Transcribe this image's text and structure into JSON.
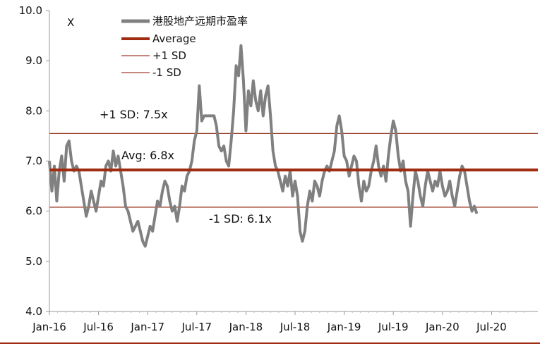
{
  "chart_data": {
    "type": "line",
    "ylabel_corner": "X",
    "ylim": [
      4.0,
      10.0
    ],
    "yticks": [
      "10.0",
      "9.0",
      "8.0",
      "7.0",
      "6.0",
      "5.0",
      "4.0"
    ],
    "xticks": [
      "Jan-16",
      "Jul-16",
      "Jan-17",
      "Jul-17",
      "Jan-18",
      "Jul-18",
      "Jan-19",
      "Jul-19",
      "Jan-20",
      "Jul-20"
    ],
    "x_range": [
      0,
      60
    ],
    "legend": [
      {
        "label": "港股地产远期市盈率",
        "color": "#808080"
      },
      {
        "label": "Average",
        "color": "#a02c12"
      },
      {
        "label": "+1 SD",
        "color": "#a0412a"
      },
      {
        "label": "-1 SD",
        "color": "#a0412a"
      }
    ],
    "colors": {
      "series": "#808080",
      "average": "#a02c12",
      "sd": "#a0412a",
      "axis": "#999999",
      "bottom_rule": "#a02c12"
    },
    "reference_lines": {
      "plus_sd": 7.55,
      "average": 6.82,
      "minus_sd": 6.08
    },
    "annotations": {
      "plus_sd": "+1 SD: 7.5x",
      "average": "Avg: 6.8x",
      "minus_sd": "-1 SD: 6.1x"
    },
    "series": [
      {
        "name": "港股地产远期市盈率",
        "points": [
          [
            0.0,
            7.0
          ],
          [
            0.3,
            6.4
          ],
          [
            0.6,
            6.9
          ],
          [
            0.9,
            6.2
          ],
          [
            1.2,
            6.8
          ],
          [
            1.5,
            7.1
          ],
          [
            1.8,
            6.6
          ],
          [
            2.1,
            7.3
          ],
          [
            2.4,
            7.4
          ],
          [
            2.7,
            7.0
          ],
          [
            3.0,
            6.8
          ],
          [
            3.3,
            6.9
          ],
          [
            3.6,
            6.8
          ],
          [
            3.9,
            6.5
          ],
          [
            4.2,
            6.2
          ],
          [
            4.5,
            5.9
          ],
          [
            4.8,
            6.1
          ],
          [
            5.1,
            6.4
          ],
          [
            5.4,
            6.2
          ],
          [
            5.7,
            6.0
          ],
          [
            6.0,
            6.3
          ],
          [
            6.3,
            6.6
          ],
          [
            6.6,
            6.5
          ],
          [
            6.9,
            6.9
          ],
          [
            7.2,
            7.0
          ],
          [
            7.5,
            6.8
          ],
          [
            7.8,
            7.2
          ],
          [
            8.1,
            6.9
          ],
          [
            8.4,
            7.1
          ],
          [
            8.7,
            6.8
          ],
          [
            9.0,
            6.5
          ],
          [
            9.3,
            6.1
          ],
          [
            9.6,
            6.0
          ],
          [
            9.9,
            5.8
          ],
          [
            10.2,
            5.6
          ],
          [
            10.5,
            5.7
          ],
          [
            10.8,
            5.8
          ],
          [
            11.1,
            5.6
          ],
          [
            11.4,
            5.4
          ],
          [
            11.7,
            5.3
          ],
          [
            12.0,
            5.5
          ],
          [
            12.3,
            5.7
          ],
          [
            12.6,
            5.6
          ],
          [
            12.9,
            5.9
          ],
          [
            13.2,
            6.2
          ],
          [
            13.5,
            6.1
          ],
          [
            13.8,
            6.4
          ],
          [
            14.1,
            6.6
          ],
          [
            14.4,
            6.5
          ],
          [
            14.7,
            6.2
          ],
          [
            15.0,
            6.0
          ],
          [
            15.3,
            6.1
          ],
          [
            15.6,
            5.8
          ],
          [
            15.9,
            6.1
          ],
          [
            16.2,
            6.5
          ],
          [
            16.5,
            6.4
          ],
          [
            16.8,
            6.7
          ],
          [
            17.1,
            6.8
          ],
          [
            17.4,
            7.0
          ],
          [
            17.7,
            7.4
          ],
          [
            18.0,
            7.6
          ],
          [
            18.3,
            8.5
          ],
          [
            18.6,
            7.8
          ],
          [
            18.9,
            7.9
          ],
          [
            19.2,
            7.9
          ],
          [
            19.5,
            7.9
          ],
          [
            19.8,
            7.9
          ],
          [
            20.1,
            7.9
          ],
          [
            20.4,
            7.7
          ],
          [
            20.7,
            7.3
          ],
          [
            21.0,
            7.2
          ],
          [
            21.3,
            7.3
          ],
          [
            21.6,
            7.0
          ],
          [
            21.9,
            6.9
          ],
          [
            22.2,
            7.4
          ],
          [
            22.5,
            8.0
          ],
          [
            22.8,
            8.9
          ],
          [
            23.1,
            8.7
          ],
          [
            23.4,
            9.3
          ],
          [
            23.7,
            8.6
          ],
          [
            24.0,
            7.6
          ],
          [
            24.3,
            8.4
          ],
          [
            24.6,
            8.1
          ],
          [
            24.9,
            8.6
          ],
          [
            25.2,
            8.2
          ],
          [
            25.5,
            8.0
          ],
          [
            25.8,
            8.4
          ],
          [
            26.1,
            7.9
          ],
          [
            26.4,
            8.3
          ],
          [
            26.7,
            8.5
          ],
          [
            27.0,
            7.9
          ],
          [
            27.3,
            7.2
          ],
          [
            27.6,
            6.9
          ],
          [
            27.9,
            6.8
          ],
          [
            28.2,
            6.6
          ],
          [
            28.5,
            6.4
          ],
          [
            28.8,
            6.7
          ],
          [
            29.1,
            6.5
          ],
          [
            29.4,
            6.8
          ],
          [
            29.7,
            6.3
          ],
          [
            30.0,
            6.6
          ],
          [
            30.3,
            6.3
          ],
          [
            30.6,
            5.6
          ],
          [
            30.9,
            5.4
          ],
          [
            31.2,
            5.6
          ],
          [
            31.5,
            6.1
          ],
          [
            31.8,
            6.4
          ],
          [
            32.1,
            6.2
          ],
          [
            32.4,
            6.6
          ],
          [
            32.7,
            6.5
          ],
          [
            33.0,
            6.3
          ],
          [
            33.3,
            6.6
          ],
          [
            33.6,
            6.8
          ],
          [
            33.9,
            6.9
          ],
          [
            34.2,
            6.8
          ],
          [
            34.5,
            7.0
          ],
          [
            34.8,
            7.2
          ],
          [
            35.1,
            7.7
          ],
          [
            35.4,
            7.9
          ],
          [
            35.7,
            7.6
          ],
          [
            36.0,
            7.1
          ],
          [
            36.3,
            7.0
          ],
          [
            36.6,
            6.7
          ],
          [
            36.9,
            6.9
          ],
          [
            37.2,
            7.1
          ],
          [
            37.5,
            7.0
          ],
          [
            37.8,
            6.5
          ],
          [
            38.1,
            6.2
          ],
          [
            38.4,
            6.6
          ],
          [
            38.7,
            6.4
          ],
          [
            39.0,
            6.5
          ],
          [
            39.3,
            6.8
          ],
          [
            39.6,
            7.0
          ],
          [
            39.9,
            7.3
          ],
          [
            40.2,
            6.9
          ],
          [
            40.5,
            6.7
          ],
          [
            40.8,
            6.9
          ],
          [
            41.1,
            6.6
          ],
          [
            41.4,
            7.1
          ],
          [
            41.7,
            7.5
          ],
          [
            42.0,
            7.8
          ],
          [
            42.3,
            7.6
          ],
          [
            42.6,
            7.1
          ],
          [
            42.9,
            6.8
          ],
          [
            43.2,
            7.0
          ],
          [
            43.5,
            6.6
          ],
          [
            43.8,
            6.4
          ],
          [
            44.1,
            5.7
          ],
          [
            44.4,
            6.3
          ],
          [
            44.7,
            6.8
          ],
          [
            45.0,
            6.6
          ],
          [
            45.3,
            6.3
          ],
          [
            45.6,
            6.1
          ],
          [
            45.9,
            6.5
          ],
          [
            46.2,
            6.8
          ],
          [
            46.5,
            6.6
          ],
          [
            46.8,
            6.4
          ],
          [
            47.1,
            6.6
          ],
          [
            47.4,
            6.5
          ],
          [
            47.7,
            6.8
          ],
          [
            48.0,
            6.5
          ],
          [
            48.3,
            6.3
          ],
          [
            48.6,
            6.4
          ],
          [
            48.9,
            6.6
          ],
          [
            49.2,
            6.3
          ],
          [
            49.5,
            6.1
          ],
          [
            49.8,
            6.4
          ],
          [
            50.1,
            6.7
          ],
          [
            50.4,
            6.9
          ],
          [
            50.7,
            6.8
          ],
          [
            51.0,
            6.5
          ],
          [
            51.3,
            6.2
          ],
          [
            51.6,
            6.0
          ],
          [
            51.9,
            6.1
          ],
          [
            52.2,
            5.95
          ]
        ]
      }
    ]
  }
}
